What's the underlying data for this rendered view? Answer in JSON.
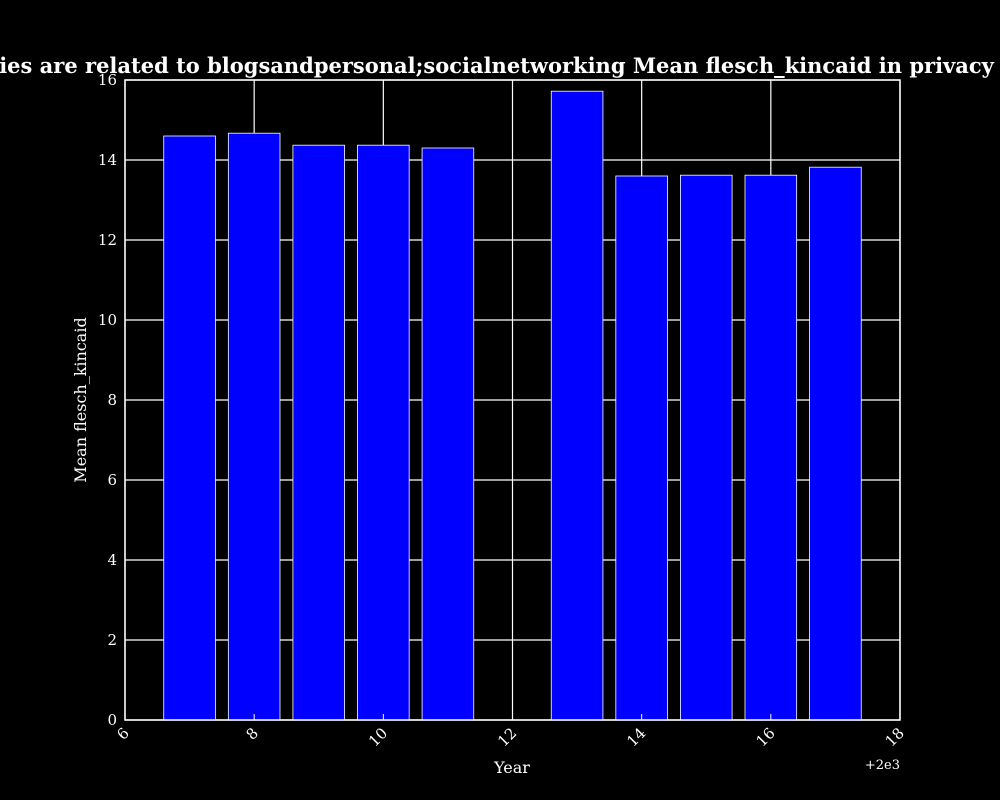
{
  "chart_data": {
    "type": "bar",
    "title": "en categories are related to blogsandpersonal;socialnetworking Mean flesch_kincaid in privacy policies by",
    "xlabel": "Year",
    "ylabel": "Mean flesch_kincaid",
    "x_offset_label": "+2e3",
    "x": [
      2007,
      2008,
      2009,
      2010,
      2011,
      2013,
      2014,
      2015,
      2016,
      2017
    ],
    "values": [
      14.6,
      14.67,
      14.37,
      14.37,
      14.3,
      15.72,
      13.6,
      13.62,
      13.62,
      13.82
    ],
    "xlim": [
      2006,
      2018
    ],
    "ylim": [
      0,
      16
    ],
    "x_ticks": [
      6,
      8,
      10,
      12,
      14,
      16,
      18
    ],
    "x_tick_labels": [
      "6",
      "8",
      "10",
      "12",
      "14",
      "16",
      "18"
    ],
    "y_ticks": [
      0,
      2,
      4,
      6,
      8,
      10,
      12,
      14,
      16
    ],
    "y_tick_labels": [
      "0",
      "2",
      "4",
      "6",
      "8",
      "10",
      "12",
      "14",
      "16"
    ],
    "grid": true,
    "background_color": "#000000",
    "bar_color": "#0000ff",
    "edge_color": "#ffffff",
    "text_color": "#ffffff"
  }
}
